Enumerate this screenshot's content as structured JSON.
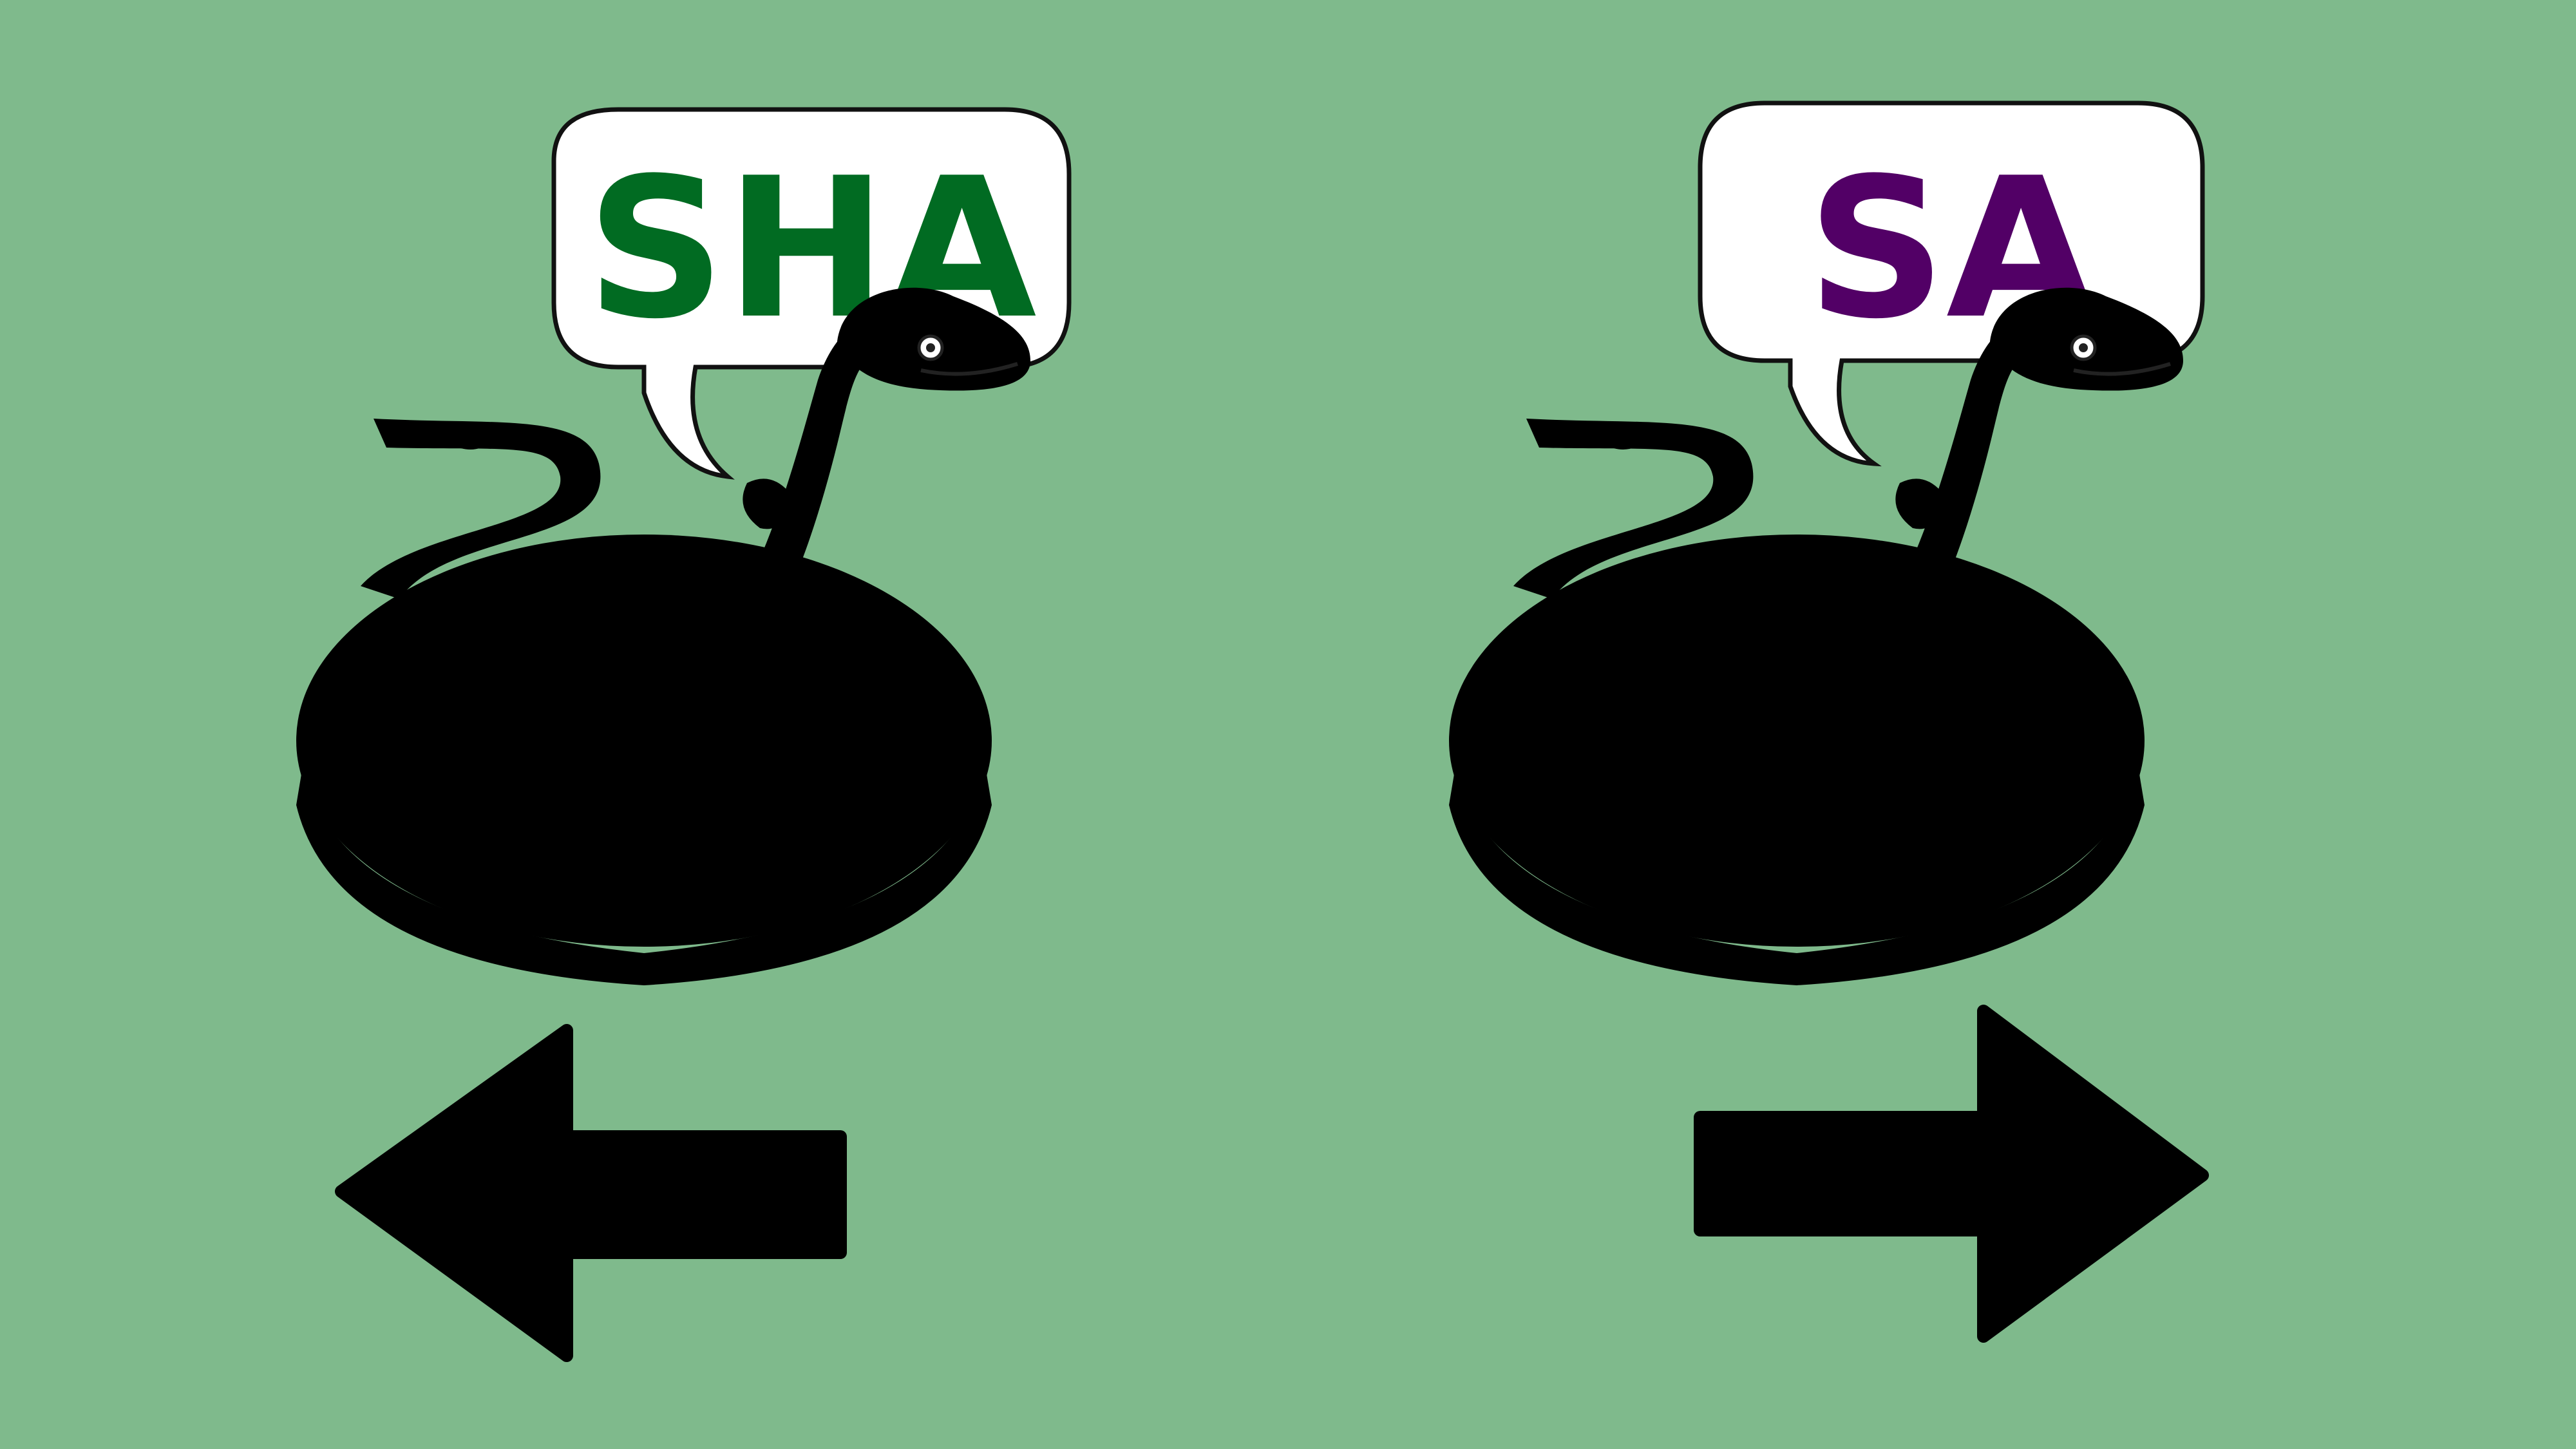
{
  "background_color": "#7fba8c",
  "choices": [
    {
      "id": "left",
      "speech_text": "SHA",
      "text_color": "#016b22",
      "snake": {
        "body_color": "#6fae16",
        "outline_color": "#2a5b0c",
        "spot_color": "#b98c3f",
        "dot_color": "#5a4a16"
      },
      "arrow_icon": "arrow-left-icon"
    },
    {
      "id": "right",
      "speech_text": "SA",
      "text_color": "#520066",
      "snake": {
        "body_color": "#a8135e",
        "outline_color": "#4d0f2a",
        "spot_color": "#9b3fc4",
        "dot_color": "#3d0f3f"
      },
      "arrow_icon": "arrow-right-icon"
    }
  ]
}
